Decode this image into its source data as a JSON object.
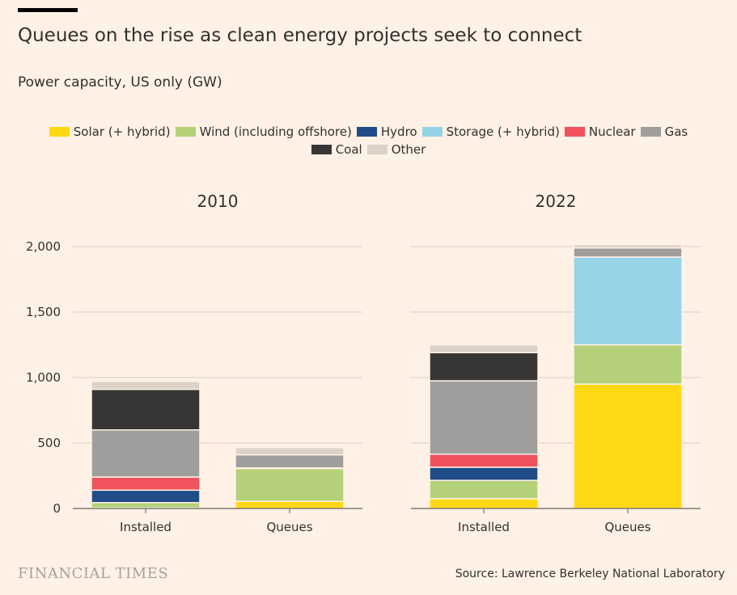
{
  "header": {
    "title": "Queues on the rise as clean energy projects seek to connect",
    "subtitle": "Power capacity, US only (GW)"
  },
  "footer": {
    "logo_text": "FINANCIAL TIMES",
    "source": "Source: Lawrence Berkeley National Laboratory"
  },
  "colors": {
    "background": "#fff1e5",
    "gridline": "#d9cdc3",
    "baseline": "#66605c",
    "text": "#33302e"
  },
  "chart_data": {
    "type": "bar",
    "stacked": true,
    "ylim": [
      0,
      2000
    ],
    "yticks": [
      0,
      500,
      1000,
      1500,
      2000
    ],
    "ytick_labels": [
      "0",
      "500",
      "1,000",
      "1,500",
      "2,000"
    ],
    "grid": true,
    "legend_position": "top",
    "legend": [
      {
        "name": "Solar (+ hybrid)",
        "color": "#ffd814"
      },
      {
        "name": "Wind (including offshore)",
        "color": "#b4d179"
      },
      {
        "name": "Hydro",
        "color": "#204d88"
      },
      {
        "name": "Storage (+ hybrid)",
        "color": "#96d3e6"
      },
      {
        "name": "Nuclear",
        "color": "#f0535e"
      },
      {
        "name": "Gas",
        "color": "#a09e9c"
      },
      {
        "name": "Coal",
        "color": "#383635"
      },
      {
        "name": "Other",
        "color": "#dcd2c8"
      }
    ],
    "panels": [
      {
        "title": "2010",
        "categories": [
          "Installed",
          "Queues"
        ],
        "series": [
          {
            "name": "Solar (+ hybrid)",
            "values": [
              5,
              55
            ]
          },
          {
            "name": "Wind (including offshore)",
            "values": [
              40,
              250
            ]
          },
          {
            "name": "Hydro",
            "values": [
              95,
              0
            ]
          },
          {
            "name": "Storage (+ hybrid)",
            "values": [
              0,
              5
            ]
          },
          {
            "name": "Nuclear",
            "values": [
              100,
              0
            ]
          },
          {
            "name": "Gas",
            "values": [
              360,
              100
            ]
          },
          {
            "name": "Coal",
            "values": [
              310,
              0
            ]
          },
          {
            "name": "Other",
            "values": [
              60,
              55
            ]
          }
        ]
      },
      {
        "title": "2022",
        "categories": [
          "Installed",
          "Queues"
        ],
        "series": [
          {
            "name": "Solar (+ hybrid)",
            "values": [
              75,
              950
            ]
          },
          {
            "name": "Wind (including offshore)",
            "values": [
              140,
              300
            ]
          },
          {
            "name": "Hydro",
            "values": [
              100,
              0
            ]
          },
          {
            "name": "Storage (+ hybrid)",
            "values": [
              0,
              670
            ]
          },
          {
            "name": "Nuclear",
            "values": [
              100,
              0
            ]
          },
          {
            "name": "Gas",
            "values": [
              560,
              70
            ]
          },
          {
            "name": "Coal",
            "values": [
              215,
              0
            ]
          },
          {
            "name": "Other",
            "values": [
              60,
              25
            ]
          }
        ]
      }
    ]
  }
}
